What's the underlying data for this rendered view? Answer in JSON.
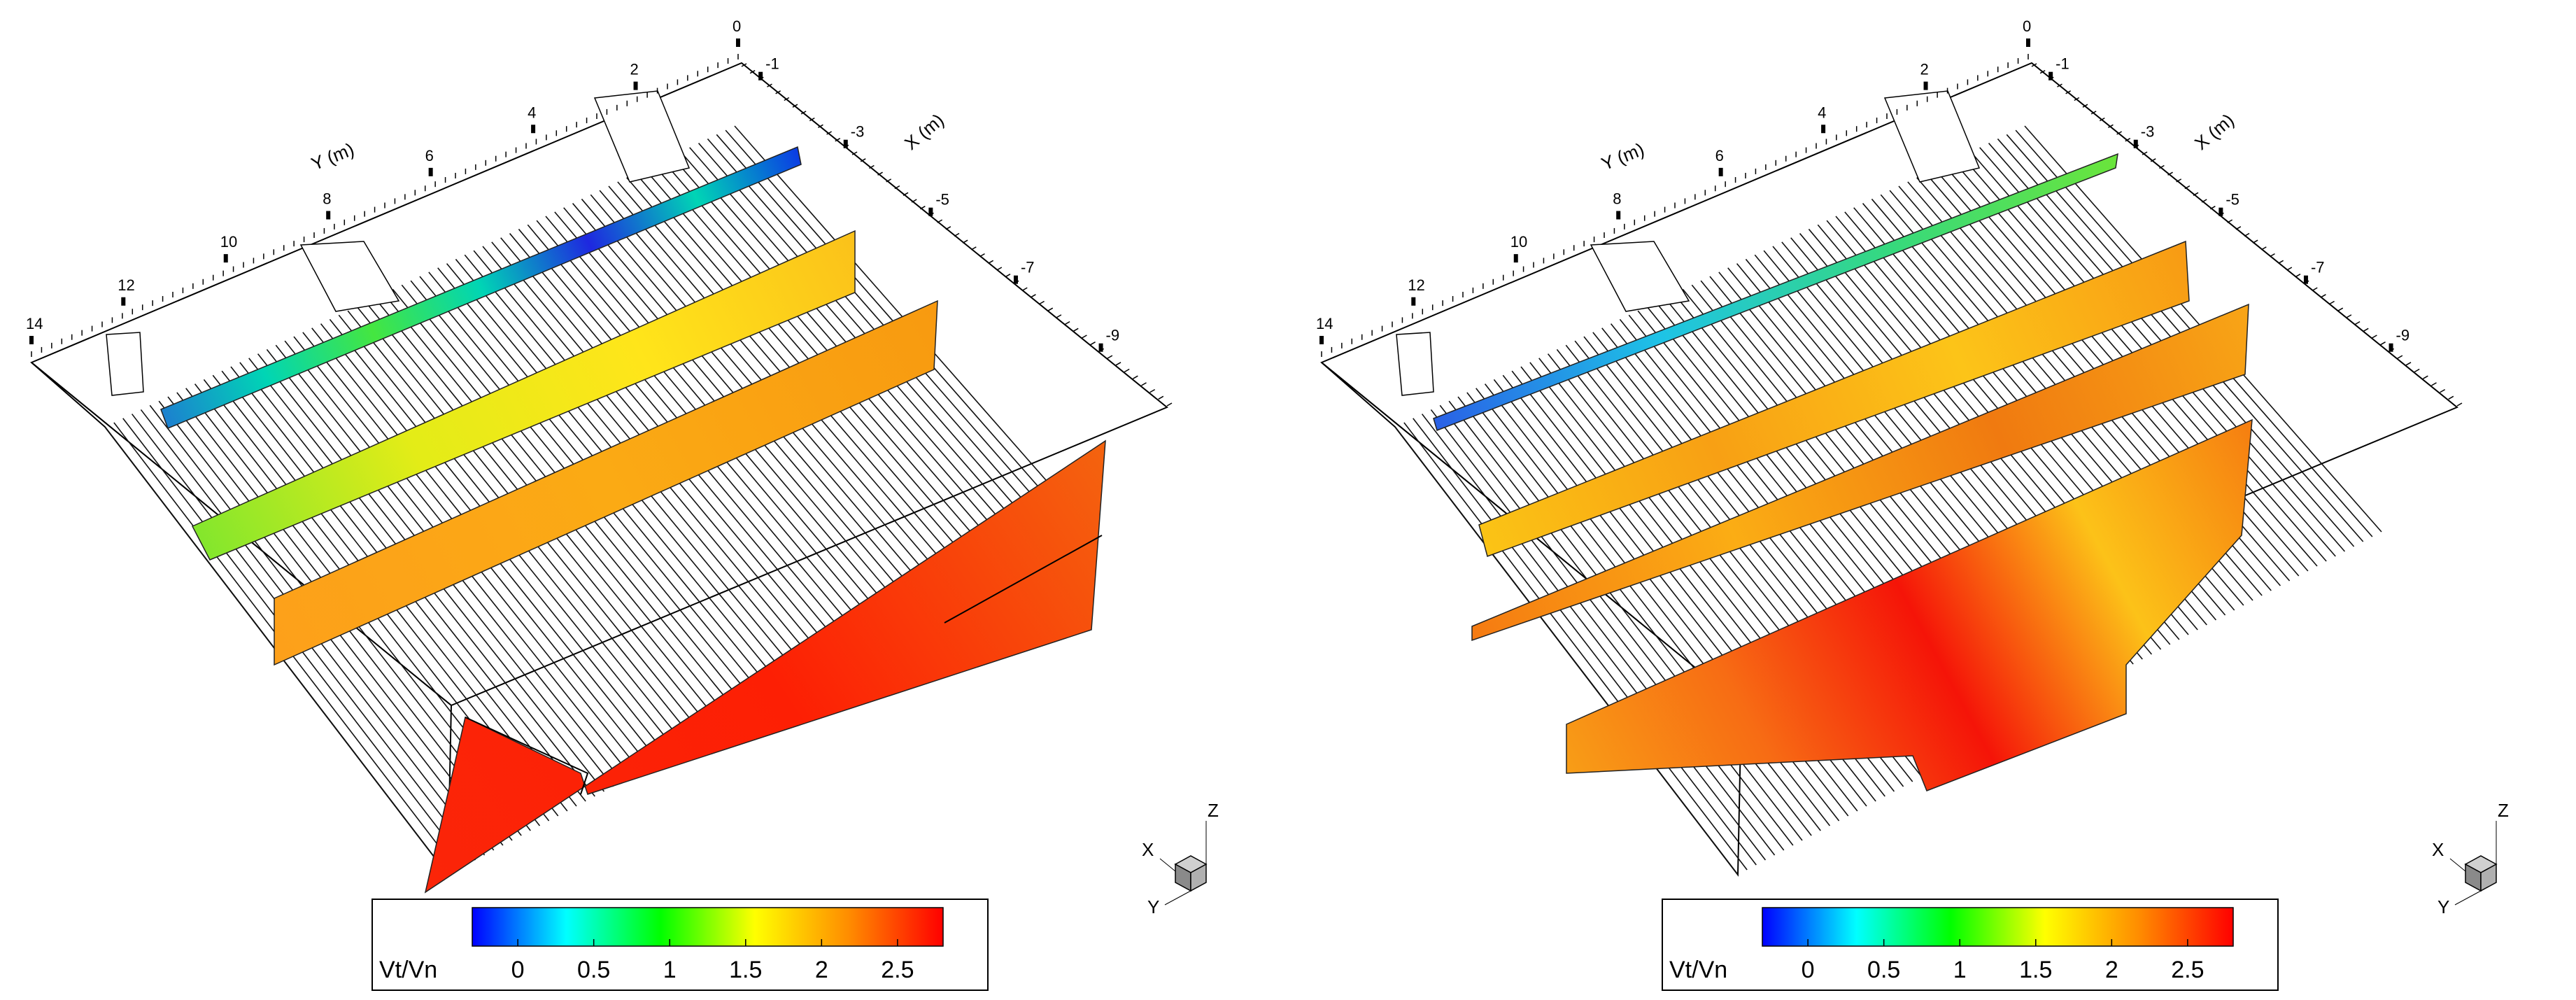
{
  "chart_data": [
    {
      "type": "heatmap",
      "panel": "left",
      "x_axis": {
        "label": "X (m)",
        "ticks": [
          "-1",
          "-3",
          "-5",
          "-7",
          "-9"
        ]
      },
      "y_axis": {
        "label": "Y (m)",
        "ticks": [
          "0",
          "2",
          "4",
          "6",
          "8",
          "10",
          "12",
          "14"
        ]
      },
      "colorbar": {
        "label": "Vt/Vn",
        "range": [
          -0.3,
          2.8
        ],
        "ticks": [
          "0",
          "0.5",
          "1",
          "1.5",
          "2",
          "2.5"
        ],
        "colormap": [
          "#0000ff",
          "#00ffff",
          "#00ff00",
          "#ffff00",
          "#ff8c00",
          "#ff0000"
        ]
      },
      "slices": [
        {
          "name": "strip-1",
          "value_range": [
            -0.2,
            1.2
          ],
          "colors": [
            "#1e7bd1",
            "#00d5b5",
            "#45e640",
            "#00d5b5",
            "#1e28e0",
            "#00d5b5",
            "#0b35e6"
          ]
        },
        {
          "name": "strip-2",
          "value_range": [
            1.5,
            2.0
          ],
          "colors": [
            "#7de62e",
            "#e3ec17",
            "#ffe51a",
            "#fbc11a"
          ]
        },
        {
          "name": "strip-3",
          "value_range": [
            2.0,
            2.1
          ],
          "colors": [
            "#fda01a",
            "#fbaa14",
            "#f89a10"
          ]
        },
        {
          "name": "strip-4",
          "value_range": [
            2.3,
            2.7
          ],
          "colors": [
            "#fb2508",
            "#fd1f04",
            "#f4640f"
          ]
        }
      ],
      "triad": [
        "X",
        "Y",
        "Z"
      ]
    },
    {
      "type": "heatmap",
      "panel": "right",
      "x_axis": {
        "label": "X (m)",
        "ticks": [
          "-1",
          "-3",
          "-5",
          "-7",
          "-9"
        ]
      },
      "y_axis": {
        "label": "Y (m)",
        "ticks": [
          "0",
          "2",
          "4",
          "6",
          "8",
          "10",
          "12",
          "14"
        ]
      },
      "colorbar": {
        "label": "Vt/Vn",
        "range": [
          -0.3,
          2.8
        ],
        "ticks": [
          "0",
          "0.5",
          "1",
          "1.5",
          "2",
          "2.5"
        ],
        "colormap": [
          "#0000ff",
          "#00ffff",
          "#00ff00",
          "#ffff00",
          "#ff8c00",
          "#ff0000"
        ]
      },
      "slices": [
        {
          "name": "strip-1",
          "value_range": [
            0.2,
            1.2
          ],
          "colors": [
            "#2a5fe6",
            "#1ec3e6",
            "#36d97d",
            "#6be53a"
          ]
        },
        {
          "name": "strip-2",
          "value_range": [
            1.8,
            2.3
          ],
          "colors": [
            "#fbc515",
            "#f8a014",
            "#fcc418",
            "#f89a14"
          ]
        },
        {
          "name": "strip-3",
          "value_range": [
            1.9,
            2.4
          ],
          "colors": [
            "#f57a12",
            "#fbad14",
            "#f07a10",
            "#f8a516"
          ]
        },
        {
          "name": "strip-4",
          "value_range": [
            1.9,
            2.7
          ],
          "colors": [
            "#f8a016",
            "#f76c14",
            "#f51408",
            "#fcc218",
            "#f67d10"
          ]
        }
      ],
      "triad": [
        "X",
        "Y",
        "Z"
      ]
    }
  ]
}
